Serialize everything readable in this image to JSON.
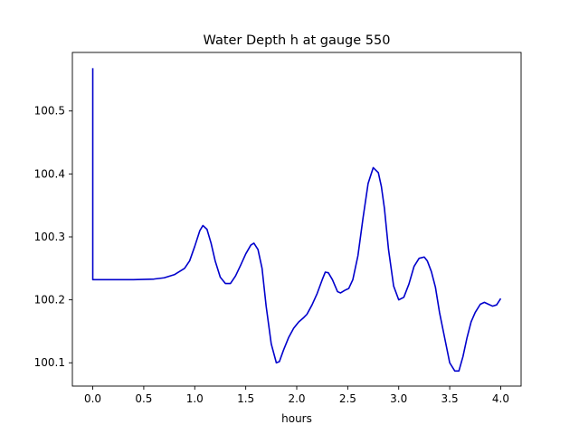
{
  "chart_data": {
    "type": "line",
    "title": "Water Depth h at gauge 550",
    "xlabel": "hours",
    "ylabel": "",
    "xlim": [
      -0.2,
      4.2
    ],
    "ylim": [
      100.063,
      100.593
    ],
    "xticks": [
      0.0,
      0.5,
      1.0,
      1.5,
      2.0,
      2.5,
      3.0,
      3.5,
      4.0
    ],
    "xtick_labels": [
      "0.0",
      "0.5",
      "1.0",
      "1.5",
      "2.0",
      "2.5",
      "3.0",
      "3.5",
      "4.0"
    ],
    "yticks": [
      100.1,
      100.2,
      100.3,
      100.4,
      100.5
    ],
    "ytick_labels": [
      "100.1",
      "100.2",
      "100.3",
      "100.4",
      "100.5"
    ],
    "grid": false,
    "legend": "none",
    "series": [
      {
        "color": "#0000cc",
        "x": [
          0.0,
          0.0,
          0.0,
          0.2,
          0.4,
          0.6,
          0.7,
          0.8,
          0.9,
          0.95,
          1.0,
          1.05,
          1.08,
          1.12,
          1.16,
          1.2,
          1.25,
          1.3,
          1.35,
          1.4,
          1.45,
          1.5,
          1.55,
          1.58,
          1.62,
          1.66,
          1.7,
          1.75,
          1.8,
          1.83,
          1.87,
          1.92,
          1.97,
          2.02,
          2.07,
          2.1,
          2.15,
          2.2,
          2.25,
          2.28,
          2.31,
          2.35,
          2.4,
          2.43,
          2.47,
          2.51,
          2.55,
          2.6,
          2.65,
          2.7,
          2.75,
          2.8,
          2.83,
          2.86,
          2.9,
          2.95,
          3.0,
          3.05,
          3.1,
          3.15,
          3.2,
          3.25,
          3.28,
          3.32,
          3.36,
          3.4,
          3.45,
          3.5,
          3.55,
          3.59,
          3.63,
          3.67,
          3.71,
          3.75,
          3.8,
          3.84,
          3.88,
          3.92,
          3.96,
          4.0
        ],
        "y": [
          100.568,
          100.232,
          100.232,
          100.232,
          100.232,
          100.233,
          100.235,
          100.24,
          100.25,
          100.262,
          100.285,
          100.31,
          100.318,
          100.312,
          100.29,
          100.262,
          100.236,
          100.226,
          100.226,
          100.238,
          100.255,
          100.273,
          100.287,
          100.29,
          100.28,
          100.25,
          100.19,
          100.13,
          100.1,
          100.102,
          100.12,
          100.14,
          100.155,
          100.165,
          100.172,
          100.177,
          100.192,
          100.21,
          100.232,
          100.244,
          100.243,
          100.232,
          100.213,
          100.211,
          100.215,
          100.218,
          100.232,
          100.27,
          100.33,
          100.385,
          100.41,
          100.402,
          100.38,
          100.345,
          100.28,
          100.222,
          100.2,
          100.204,
          100.225,
          100.253,
          100.266,
          100.268,
          100.262,
          100.245,
          100.22,
          100.18,
          100.14,
          100.1,
          100.087,
          100.087,
          100.11,
          100.14,
          100.165,
          100.18,
          100.193,
          100.196,
          100.193,
          100.19,
          100.192,
          100.202
        ]
      }
    ]
  }
}
